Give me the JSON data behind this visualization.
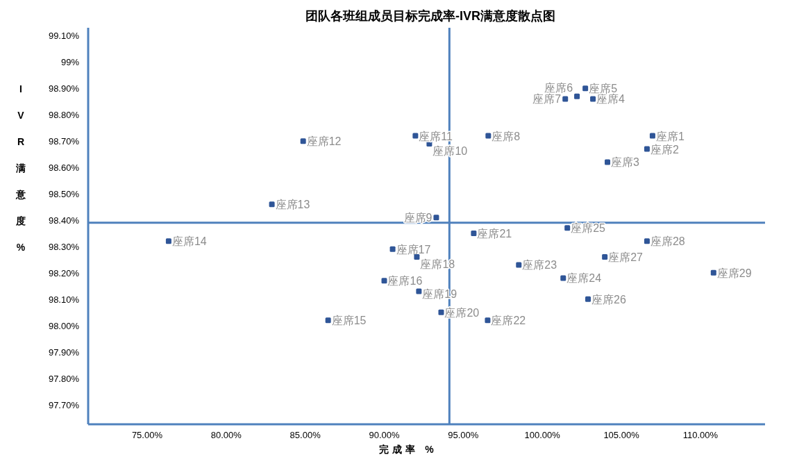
{
  "chart_data": {
    "type": "scatter",
    "title": "团队各班组成员目标完成率-IVR满意度散点图",
    "xlabel": "完成率 %",
    "ylabel": "IVR满意度%",
    "xlim": [
      71.27,
      114.0
    ],
    "ylim": [
      97.625,
      99.13
    ],
    "xticks": [
      {
        "value": 75,
        "label": "75.00%"
      },
      {
        "value": 80,
        "label": "80.00%"
      },
      {
        "value": 85,
        "label": "85.00%"
      },
      {
        "value": 90,
        "label": "90.00%"
      },
      {
        "value": 95,
        "label": "95.00%"
      },
      {
        "value": 100,
        "label": "100.00%"
      },
      {
        "value": 105,
        "label": "105.00%"
      },
      {
        "value": 110,
        "label": "110.00%"
      }
    ],
    "yticks": [
      {
        "value": 97.7,
        "label": "97.70%"
      },
      {
        "value": 97.8,
        "label": "97.80%"
      },
      {
        "value": 97.9,
        "label": "97.90%"
      },
      {
        "value": 98.0,
        "label": "98.00%"
      },
      {
        "value": 98.1,
        "label": "98.10%"
      },
      {
        "value": 98.2,
        "label": "98.20%"
      },
      {
        "value": 98.3,
        "label": "98.30%"
      },
      {
        "value": 98.4,
        "label": "98.40%"
      },
      {
        "value": 98.5,
        "label": "98.50%"
      },
      {
        "value": 98.6,
        "label": "98.60%"
      },
      {
        "value": 98.7,
        "label": "98.70%"
      },
      {
        "value": 98.8,
        "label": "98.80%"
      },
      {
        "value": 98.9,
        "label": "98.90%"
      },
      {
        "value": 99.0,
        "label": "99%"
      },
      {
        "value": 99.1,
        "label": "99.10%"
      }
    ],
    "grid": false,
    "marker": "square",
    "ref_lines": [
      {
        "axis": "x",
        "value": 94.12,
        "color": "#4f81bd"
      },
      {
        "axis": "y",
        "value": 98.39,
        "color": "#4f81bd"
      }
    ],
    "series": [
      {
        "color": "#2f5597",
        "x": [
          106.97,
          106.62,
          104.12,
          103.2,
          102.72,
          102.19,
          101.45,
          96.58,
          93.29,
          92.85,
          91.97,
          84.87,
          82.89,
          76.36,
          86.45,
          90.0,
          90.53,
          92.06,
          92.19,
          93.6,
          95.66,
          96.54,
          98.51,
          101.32,
          101.58,
          102.89,
          103.95,
          106.62,
          110.83
        ],
        "values": [
          98.72,
          98.67,
          98.62,
          98.86,
          98.9,
          98.87,
          98.86,
          98.72,
          98.41,
          98.69,
          98.72,
          98.7,
          98.46,
          98.32,
          98.02,
          98.17,
          98.29,
          98.26,
          98.13,
          98.05,
          98.35,
          98.02,
          98.23,
          98.18,
          98.37,
          98.1,
          98.26,
          98.32,
          98.2
        ],
        "value_labels": [
          "座席1",
          "座席2",
          "座席3",
          "座席4",
          "座席5",
          "座席6",
          "座席7",
          "座席8",
          "座席9",
          "座席10",
          "座席11",
          "座席12",
          "座席13",
          "座席14",
          "座席15",
          "座席16",
          "座席17",
          "座席18",
          "座席19",
          "座席20",
          "座席21",
          "座席22",
          "座席23",
          "座席24",
          "座席25",
          "座席26",
          "座席27",
          "座席28",
          "座席29"
        ]
      }
    ]
  }
}
